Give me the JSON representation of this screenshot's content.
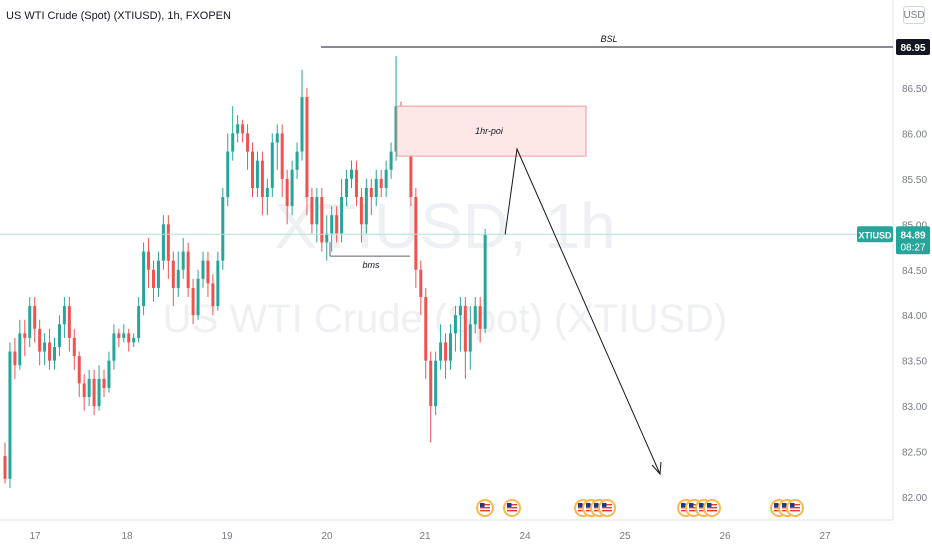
{
  "header": {
    "title": "US WTI Crude (Spot) (XTIUSD), 1h, FXOPEN",
    "currency_button": "USD"
  },
  "watermark": {
    "line1": "XTIUSD, 1h",
    "line2": "US WTI Crude (Spot) (XTIUSD)"
  },
  "colors": {
    "up": "#26a69a",
    "down": "#ef5350",
    "price_line": "#b2dfdb",
    "zone_fill": "#fde7e7",
    "zone_border": "#ef9a9a",
    "level_line": "#131722",
    "axis_text": "#787b86",
    "watermark": "#eef0f3"
  },
  "chart_data": {
    "type": "candlestick",
    "symbol": "XTIUSD",
    "timeframe": "1h",
    "ylim": [
      81.9,
      87.3
    ],
    "y_ticks": [
      82.0,
      82.5,
      83.0,
      83.5,
      84.0,
      84.5,
      85.0,
      85.5,
      86.0,
      86.5
    ],
    "x_ticks": [
      "17",
      "18",
      "19",
      "20",
      "21",
      "24",
      "25",
      "26",
      "27"
    ],
    "current_price": {
      "symbol": "XTIUSD",
      "value": 84.89,
      "countdown": "08:27"
    },
    "candles": [
      [
        82.45,
        82.2,
        82.6,
        82.15
      ],
      [
        82.2,
        83.6,
        83.7,
        82.1
      ],
      [
        83.6,
        83.45,
        83.75,
        83.3
      ],
      [
        83.45,
        83.8,
        83.95,
        83.4
      ],
      [
        83.8,
        83.75,
        83.95,
        83.55
      ],
      [
        83.75,
        84.1,
        84.2,
        83.65
      ],
      [
        84.1,
        83.85,
        84.2,
        83.7
      ],
      [
        83.85,
        83.6,
        83.95,
        83.45
      ],
      [
        83.6,
        83.7,
        83.8,
        83.45
      ],
      [
        83.7,
        83.5,
        83.85,
        83.4
      ],
      [
        83.5,
        83.65,
        83.75,
        83.4
      ],
      [
        83.65,
        83.9,
        84.0,
        83.55
      ],
      [
        83.9,
        84.1,
        84.2,
        83.75
      ],
      [
        84.1,
        83.75,
        84.2,
        83.6
      ],
      [
        83.75,
        83.55,
        83.85,
        83.4
      ],
      [
        83.55,
        83.25,
        83.6,
        83.1
      ],
      [
        83.25,
        83.1,
        83.35,
        82.95
      ],
      [
        83.1,
        83.3,
        83.4,
        83.0
      ],
      [
        83.3,
        83.0,
        83.4,
        82.9
      ],
      [
        83.0,
        83.3,
        83.45,
        82.95
      ],
      [
        83.3,
        83.2,
        83.4,
        83.1
      ],
      [
        83.2,
        83.5,
        83.6,
        83.15
      ],
      [
        83.5,
        83.8,
        83.9,
        83.4
      ],
      [
        83.8,
        83.75,
        83.85,
        83.65
      ],
      [
        83.75,
        83.8,
        83.9,
        83.7
      ],
      [
        83.8,
        83.7,
        83.85,
        83.6
      ],
      [
        83.7,
        83.75,
        83.8,
        83.65
      ],
      [
        83.75,
        84.1,
        84.2,
        83.7
      ],
      [
        84.1,
        84.7,
        84.8,
        84.0
      ],
      [
        84.7,
        84.5,
        84.85,
        84.3
      ],
      [
        84.5,
        84.3,
        84.6,
        84.15
      ],
      [
        84.3,
        84.6,
        84.7,
        84.2
      ],
      [
        84.6,
        85.0,
        85.1,
        84.5
      ],
      [
        85.0,
        84.6,
        85.1,
        84.4
      ],
      [
        84.6,
        84.3,
        84.7,
        84.1
      ],
      [
        84.3,
        84.5,
        84.7,
        84.2
      ],
      [
        84.5,
        84.7,
        84.85,
        84.4
      ],
      [
        84.7,
        84.3,
        84.8,
        84.2
      ],
      [
        84.3,
        84.0,
        84.4,
        83.9
      ],
      [
        84.0,
        84.4,
        84.5,
        83.95
      ],
      [
        84.4,
        84.6,
        84.7,
        84.3
      ],
      [
        84.6,
        84.35,
        84.7,
        84.2
      ],
      [
        84.35,
        84.1,
        84.45,
        84.0
      ],
      [
        84.1,
        84.6,
        84.7,
        84.05
      ],
      [
        84.6,
        85.3,
        85.4,
        84.5
      ],
      [
        85.3,
        85.8,
        86.0,
        85.2
      ],
      [
        85.8,
        86.0,
        86.3,
        85.7
      ],
      [
        86.0,
        86.1,
        86.2,
        85.9
      ],
      [
        86.1,
        86.0,
        86.15,
        85.9
      ],
      [
        86.0,
        85.8,
        86.1,
        85.6
      ],
      [
        85.8,
        85.4,
        85.9,
        85.3
      ],
      [
        85.4,
        85.7,
        85.8,
        85.3
      ],
      [
        85.7,
        85.3,
        85.8,
        85.1
      ],
      [
        85.3,
        85.4,
        85.5,
        85.1
      ],
      [
        85.4,
        85.9,
        86.0,
        85.3
      ],
      [
        85.9,
        86.0,
        86.1,
        85.6
      ],
      [
        86.0,
        85.5,
        86.1,
        85.3
      ],
      [
        85.5,
        85.2,
        85.6,
        85.0
      ],
      [
        85.2,
        85.6,
        85.7,
        85.1
      ],
      [
        85.6,
        85.8,
        85.9,
        85.5
      ],
      [
        85.8,
        86.4,
        86.7,
        85.7
      ],
      [
        86.4,
        85.3,
        86.5,
        85.1
      ],
      [
        85.3,
        85.0,
        85.4,
        84.9
      ],
      [
        85.0,
        85.3,
        85.4,
        84.8
      ],
      [
        85.3,
        84.8,
        85.4,
        84.7
      ],
      [
        84.8,
        84.9,
        85.1,
        84.6
      ],
      [
        84.9,
        85.1,
        85.2,
        84.7
      ],
      [
        85.1,
        84.9,
        85.2,
        84.8
      ],
      [
        84.9,
        85.3,
        85.5,
        84.8
      ],
      [
        85.3,
        85.5,
        85.6,
        85.2
      ],
      [
        85.5,
        85.6,
        85.7,
        85.4
      ],
      [
        85.6,
        85.3,
        85.7,
        85.2
      ],
      [
        85.3,
        85.0,
        85.4,
        84.8
      ],
      [
        85.0,
        85.4,
        85.5,
        84.9
      ],
      [
        85.4,
        85.3,
        85.5,
        85.1
      ],
      [
        85.3,
        85.5,
        85.6,
        85.2
      ],
      [
        85.5,
        85.4,
        85.6,
        85.3
      ],
      [
        85.4,
        85.6,
        85.7,
        85.3
      ],
      [
        85.6,
        85.8,
        85.9,
        85.5
      ],
      [
        85.8,
        86.3,
        86.85,
        85.7
      ],
      [
        86.3,
        86.1,
        86.35,
        85.9
      ],
      [
        86.1,
        85.9,
        86.2,
        85.75
      ],
      [
        85.9,
        85.3,
        86.0,
        85.2
      ],
      [
        85.3,
        84.5,
        85.4,
        84.3
      ],
      [
        84.5,
        84.2,
        84.6,
        84.0
      ],
      [
        84.2,
        83.5,
        84.3,
        83.3
      ],
      [
        83.5,
        83.0,
        83.6,
        82.6
      ],
      [
        83.0,
        83.5,
        83.6,
        82.9
      ],
      [
        83.5,
        83.7,
        83.9,
        83.4
      ],
      [
        83.7,
        83.5,
        83.8,
        83.3
      ],
      [
        83.5,
        83.8,
        83.9,
        83.4
      ],
      [
        83.8,
        84.0,
        84.1,
        83.6
      ],
      [
        84.0,
        84.1,
        84.2,
        83.6
      ],
      [
        84.1,
        83.6,
        84.2,
        83.3
      ],
      [
        83.6,
        83.9,
        84.1,
        83.4
      ],
      [
        83.9,
        84.1,
        84.2,
        83.8
      ],
      [
        84.1,
        83.85,
        84.2,
        83.7
      ],
      [
        83.85,
        84.89,
        84.95,
        83.8
      ]
    ],
    "annotations": [
      {
        "type": "level",
        "label": "BSL",
        "price": 86.95,
        "price_label": "86.95"
      },
      {
        "type": "zone",
        "label": "1hr-poi",
        "price_top": 86.3,
        "price_bottom": 85.75
      },
      {
        "type": "segment",
        "label": "bms",
        "price": 84.65
      }
    ],
    "event_markers": {
      "count": 13
    }
  }
}
